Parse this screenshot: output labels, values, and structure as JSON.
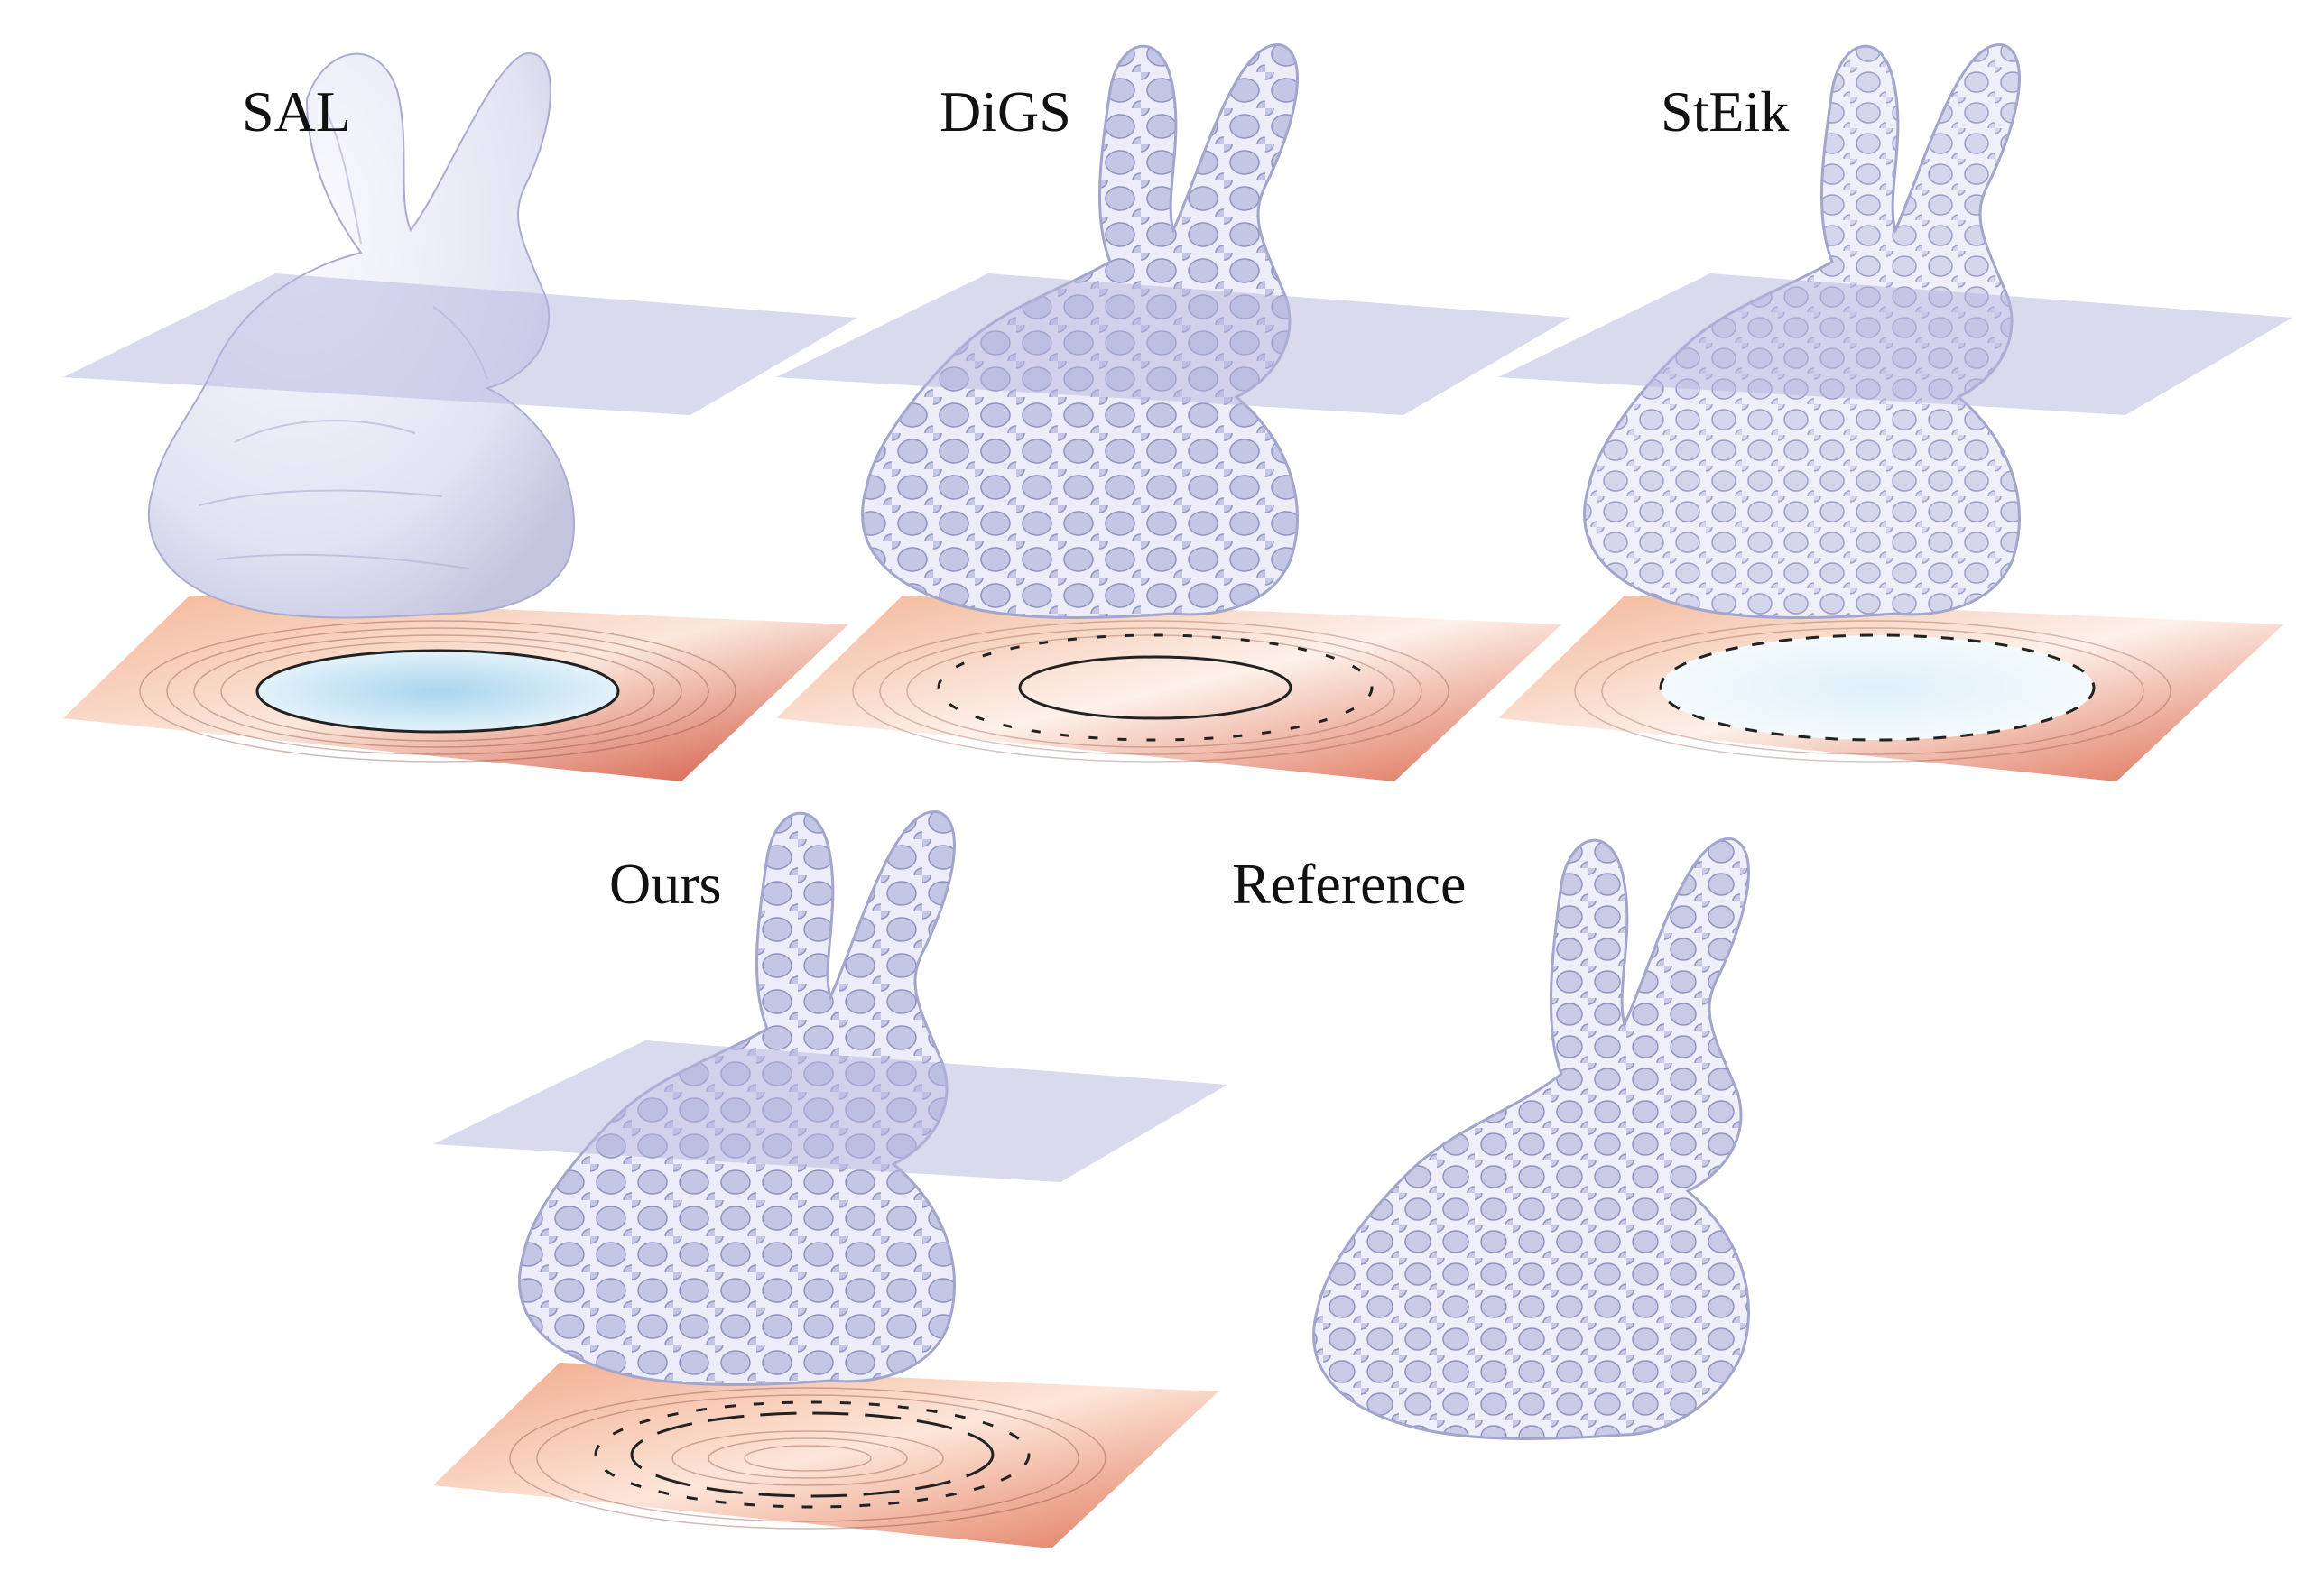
{
  "figure": {
    "panels": [
      {
        "id": "sal",
        "label": "SAL",
        "surface": "solid",
        "has_slice_plane": true
      },
      {
        "id": "digs",
        "label": "DiGS",
        "surface": "lattice",
        "has_slice_plane": true
      },
      {
        "id": "steik",
        "label": "StEik",
        "surface": "lattice-filled",
        "has_slice_plane": true
      },
      {
        "id": "ours",
        "label": "Ours",
        "surface": "lattice",
        "has_slice_plane": true
      },
      {
        "id": "reference",
        "label": "Reference",
        "surface": "lattice",
        "has_slice_plane": false
      }
    ]
  },
  "colors": {
    "bunny": "#e8e9f6",
    "bunny_shadow": "#b9bcd9",
    "plane": "#b6b6df",
    "field_far": "#d2533c",
    "field_mid": "#f6d2bd",
    "field_inside": "#bfe0f1",
    "contour": "#222222"
  }
}
